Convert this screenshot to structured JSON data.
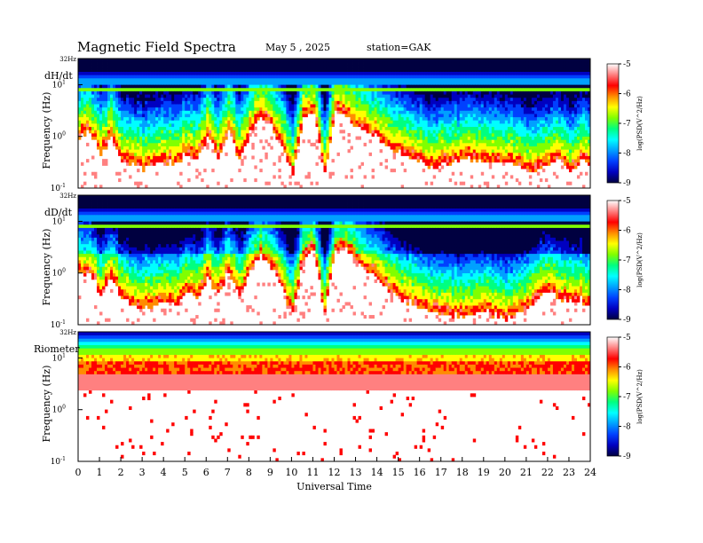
{
  "header": {
    "title": "Magnetic  Field  Spectra",
    "date": "May 5  , 2025",
    "station": "station=GAK"
  },
  "colors": {
    "colormap": [
      "#ffffff",
      "#ff8080",
      "#ff0000",
      "#ff8c00",
      "#ffff00",
      "#80ff00",
      "#00ff80",
      "#00ffff",
      "#00a0ff",
      "#0040ff",
      "#0000c0",
      "#000040"
    ]
  },
  "chart_data": [
    {
      "type": "heatmap",
      "panel_label": "dH/dt",
      "ylabel": "Frequency  (Hz)",
      "y_scale": "log",
      "y_ticks": [
        "10",
        "10",
        "10"
      ],
      "y_tick_exponents": [
        "1",
        "0",
        "-1"
      ],
      "y_top_label": "32Hz",
      "x": "UT hours 0-24",
      "ylim": [
        0.1,
        32
      ],
      "cbar_label": "log(PSD(V^2/Hz)",
      "cbar_ticks": [
        "-5",
        "-6",
        "-7",
        "-8",
        "-9"
      ],
      "cbar_range": [
        -9,
        -5
      ],
      "cutoff_log_freq_by_hour": [
        0.15,
        0.2,
        -0.25,
        0.1,
        -0.4,
        -0.45,
        -0.5,
        -0.45,
        -0.35,
        -0.45,
        -0.2,
        -0.3,
        0.1,
        -0.25,
        0.2,
        -0.3,
        0.2,
        0.5,
        0.3,
        -0.1,
        -0.6,
        0.5,
        0.6,
        -0.6,
        0.6,
        0.5,
        0.35,
        0.2,
        0.1,
        -0.1,
        -0.2,
        -0.3,
        -0.35,
        -0.5,
        -0.4,
        -0.4,
        -0.35,
        -0.3,
        -0.35,
        -0.35,
        -0.45,
        -0.4,
        -0.6,
        -0.5,
        -0.45,
        -0.3,
        -0.55,
        -0.35,
        -0.4
      ]
    },
    {
      "type": "heatmap",
      "panel_label": "dD/dt",
      "ylabel": "Frequency  (Hz)",
      "y_scale": "log",
      "y_ticks": [
        "10",
        "10",
        "10"
      ],
      "y_tick_exponents": [
        "1",
        "0",
        "-1"
      ],
      "y_top_label": "32Hz",
      "x": "UT hours 0-24",
      "ylim": [
        0.1,
        32
      ],
      "cbar_label": "log(PSD(V^2/Hz)",
      "cbar_ticks": [
        "-5",
        "-6",
        "-7",
        "-8",
        "-9"
      ],
      "cbar_range": [
        -9,
        -5
      ],
      "cutoff_log_freq_by_hour": [
        0.1,
        0.15,
        -0.3,
        0.05,
        -0.4,
        -0.5,
        -0.55,
        -0.5,
        -0.4,
        -0.5,
        -0.3,
        -0.35,
        0.05,
        -0.3,
        0.15,
        -0.35,
        0.15,
        0.45,
        0.25,
        -0.15,
        -0.7,
        0.45,
        0.55,
        -0.7,
        0.6,
        0.55,
        0.35,
        0.15,
        0.0,
        -0.2,
        -0.35,
        -0.45,
        -0.55,
        -0.6,
        -0.65,
        -0.7,
        -0.75,
        -0.7,
        -0.6,
        -0.7,
        -0.75,
        -0.7,
        -0.55,
        -0.3,
        -0.2,
        -0.35,
        -0.45,
        -0.4,
        -0.55
      ]
    },
    {
      "type": "heatmap",
      "panel_label": "Riometer",
      "ylabel": "Frequency  (Hz)",
      "y_scale": "log",
      "y_ticks": [
        "10",
        "10",
        "10"
      ],
      "y_tick_exponents": [
        "1",
        "0",
        "-1"
      ],
      "y_top_label": "32Hz",
      "x": "UT hours 0-24",
      "ylim": [
        0.1,
        32
      ],
      "cbar_label": "log(PSD(V^2/Hz)",
      "cbar_ticks": [
        "-5",
        "-6",
        "-7",
        "-8",
        "-9"
      ],
      "cbar_range": [
        -9,
        -5
      ],
      "cutoff_log_freq_by_hour": []
    }
  ],
  "xaxis": {
    "label": "Universal  Time",
    "ticks": [
      "0",
      "1",
      "2",
      "3",
      "4",
      "5",
      "6",
      "7",
      "8",
      "9",
      "10",
      "11",
      "12",
      "13",
      "14",
      "15",
      "16",
      "17",
      "18",
      "19",
      "20",
      "21",
      "22",
      "23",
      "24"
    ],
    "range": [
      0,
      24
    ]
  }
}
